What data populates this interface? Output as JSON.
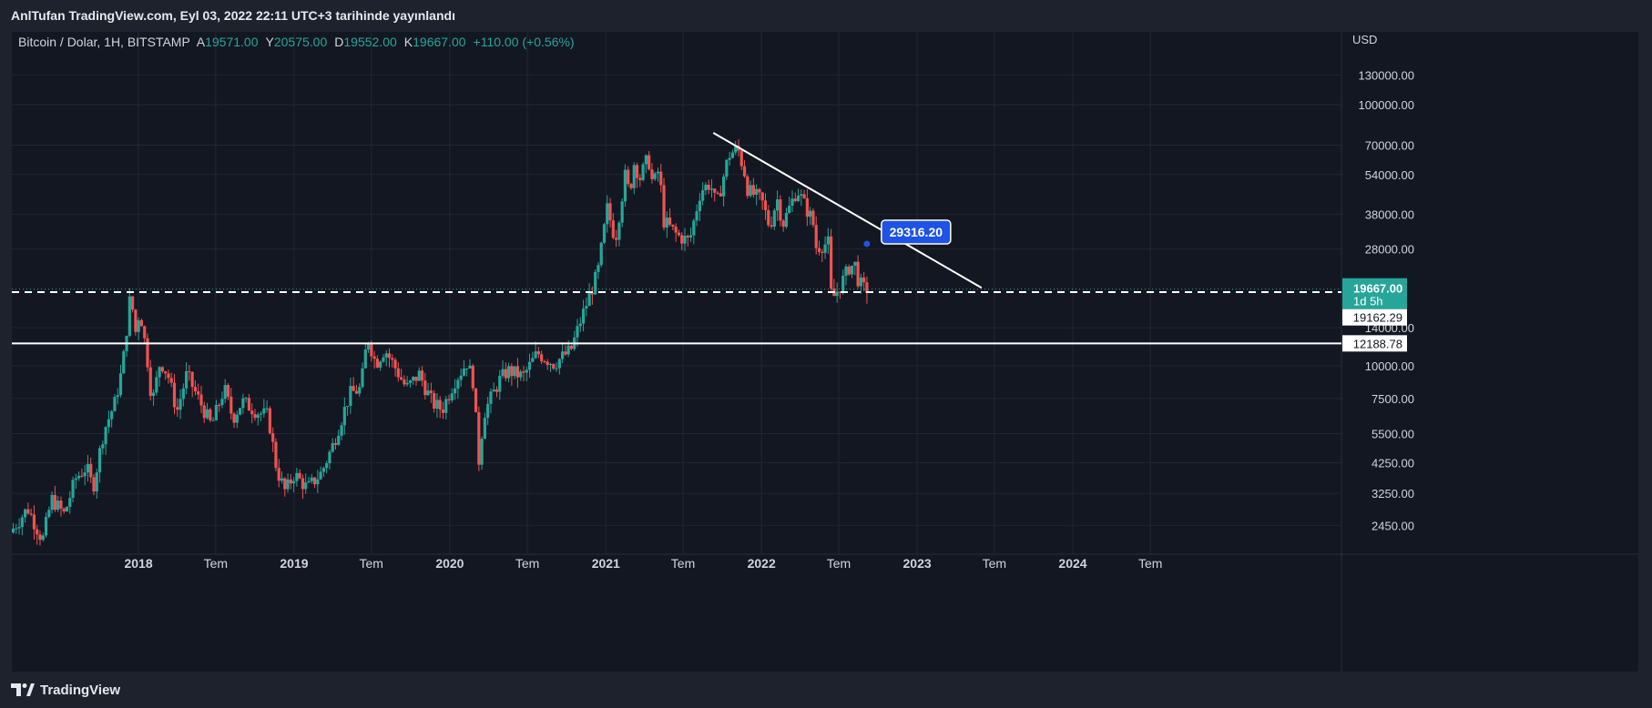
{
  "header": {
    "published_by": "AnlTufan TradingView.com, Eyl 03, 2022 22:11 UTC+3 tarihinde yayınlandı"
  },
  "footer": {
    "brand": "TradingView",
    "logo_icon": "tradingview-logo-icon"
  },
  "legend": {
    "symbol": "Bitcoin / Dolar, 1H, BITSTAMP",
    "open_label": "A",
    "open_value": "19571.00",
    "high_label": "Y",
    "high_value": "20575.00",
    "low_label": "D",
    "low_value": "19552.00",
    "close_label": "K",
    "close_value": "19667.00",
    "change": "+110.00 (+0.56%)"
  },
  "colors": {
    "background": "#131722",
    "outer": "#1e222d",
    "grid": "#232733",
    "up": "#26a69a",
    "down": "#ef5350",
    "text": "#d1d4dc",
    "trendline": "#ffffff",
    "price_tag": "#26a69a",
    "callout": "#1e53e5"
  },
  "chart_data": {
    "type": "candlestick",
    "symbol": "BTC/USD",
    "yscale": "log",
    "ylabel": "USD",
    "ylim": [
      1900,
      190000
    ],
    "xlim": [
      "2017-03-10",
      "2025-09-22"
    ],
    "y_ticks": [
      "130000.00",
      "100000.00",
      "70000.00",
      "54000.00",
      "38000.00",
      "28000.00",
      "14000.00",
      "10000.00",
      "7500.00",
      "5500.00",
      "4250.00",
      "3250.00",
      "2450.00"
    ],
    "x_ticks": [
      {
        "date": "2018-01-01",
        "label": "2018",
        "bold": true
      },
      {
        "date": "2018-07-01",
        "label": "Tem",
        "bold": false
      },
      {
        "date": "2019-01-01",
        "label": "2019",
        "bold": true
      },
      {
        "date": "2019-07-01",
        "label": "Tem",
        "bold": false
      },
      {
        "date": "2020-01-01",
        "label": "2020",
        "bold": true
      },
      {
        "date": "2020-07-01",
        "label": "Tem",
        "bold": false
      },
      {
        "date": "2021-01-01",
        "label": "2021",
        "bold": true
      },
      {
        "date": "2021-07-01",
        "label": "Tem",
        "bold": false
      },
      {
        "date": "2022-01-01",
        "label": "2022",
        "bold": true
      },
      {
        "date": "2022-07-01",
        "label": "Tem",
        "bold": false
      },
      {
        "date": "2023-01-01",
        "label": "2023",
        "bold": true
      },
      {
        "date": "2023-07-01",
        "label": "Tem",
        "bold": false
      },
      {
        "date": "2024-01-01",
        "label": "2024",
        "bold": true
      },
      {
        "date": "2024-07-01",
        "label": "Tem",
        "bold": false
      }
    ],
    "path": [
      [
        "2017-03-10",
        2300
      ],
      [
        "2017-04-20",
        2850
      ],
      [
        "2017-05-25",
        2150
      ],
      [
        "2017-06-15",
        3100
      ],
      [
        "2017-07-15",
        2700
      ],
      [
        "2017-08-10",
        3700
      ],
      [
        "2017-09-05",
        4100
      ],
      [
        "2017-09-20",
        3400
      ],
      [
        "2017-10-15",
        5600
      ],
      [
        "2017-11-10",
        7200
      ],
      [
        "2017-11-28",
        9800
      ],
      [
        "2017-12-17",
        18900
      ],
      [
        "2017-12-29",
        13500
      ],
      [
        "2018-01-08",
        16500
      ],
      [
        "2018-01-25",
        10800
      ],
      [
        "2018-02-06",
        7200
      ],
      [
        "2018-02-25",
        10500
      ],
      [
        "2018-03-15",
        9200
      ],
      [
        "2018-04-05",
        6700
      ],
      [
        "2018-04-28",
        9300
      ],
      [
        "2018-05-20",
        7800
      ],
      [
        "2018-06-25",
        5900
      ],
      [
        "2018-07-25",
        8200
      ],
      [
        "2018-08-14",
        6300
      ],
      [
        "2018-09-05",
        7300
      ],
      [
        "2018-10-15",
        6600
      ],
      [
        "2018-11-05",
        6450
      ],
      [
        "2018-11-25",
        4000
      ],
      [
        "2018-12-15",
        3300
      ],
      [
        "2019-01-05",
        3850
      ],
      [
        "2019-02-05",
        3400
      ],
      [
        "2019-03-10",
        3900
      ],
      [
        "2019-04-05",
        4950
      ],
      [
        "2019-05-15",
        7800
      ],
      [
        "2019-06-10",
        8200
      ],
      [
        "2019-06-26",
        13000
      ],
      [
        "2019-07-15",
        10200
      ],
      [
        "2019-08-05",
        11600
      ],
      [
        "2019-09-01",
        9700
      ],
      [
        "2019-09-25",
        8200
      ],
      [
        "2019-10-25",
        9300
      ],
      [
        "2019-11-25",
        7200
      ],
      [
        "2019-12-18",
        6800
      ],
      [
        "2020-01-15",
        8700
      ],
      [
        "2020-02-14",
        10300
      ],
      [
        "2020-03-01",
        8600
      ],
      [
        "2020-03-12",
        4200
      ],
      [
        "2020-03-25",
        6600
      ],
      [
        "2020-04-30",
        8800
      ],
      [
        "2020-05-20",
        9600
      ],
      [
        "2020-06-25",
        9100
      ],
      [
        "2020-07-28",
        11200
      ],
      [
        "2020-09-05",
        10200
      ],
      [
        "2020-10-15",
        11500
      ],
      [
        "2020-11-10",
        15500
      ],
      [
        "2020-12-17",
        22800
      ],
      [
        "2021-01-08",
        40000
      ],
      [
        "2021-01-27",
        30500
      ],
      [
        "2021-02-21",
        56000
      ],
      [
        "2021-02-28",
        45000
      ],
      [
        "2021-03-13",
        61000
      ],
      [
        "2021-03-25",
        52000
      ],
      [
        "2021-04-14",
        63000
      ],
      [
        "2021-04-25",
        49000
      ],
      [
        "2021-05-10",
        57000
      ],
      [
        "2021-05-20",
        36000
      ],
      [
        "2021-06-22",
        31500
      ],
      [
        "2021-07-20",
        30000
      ],
      [
        "2021-08-15",
        47000
      ],
      [
        "2021-09-07",
        50000
      ],
      [
        "2021-09-21",
        41000
      ],
      [
        "2021-10-20",
        64000
      ],
      [
        "2021-11-10",
        68000
      ],
      [
        "2021-11-26",
        55000
      ],
      [
        "2021-12-04",
        47000
      ],
      [
        "2022-01-05",
        43000
      ],
      [
        "2022-01-24",
        34000
      ],
      [
        "2022-02-10",
        44000
      ],
      [
        "2022-02-24",
        35000
      ],
      [
        "2022-03-29",
        47500
      ],
      [
        "2022-04-20",
        40000
      ],
      [
        "2022-05-05",
        36000
      ],
      [
        "2022-05-12",
        28500
      ],
      [
        "2022-06-10",
        29500
      ],
      [
        "2022-06-18",
        17800
      ],
      [
        "2022-07-10",
        20500
      ],
      [
        "2022-07-30",
        24000
      ],
      [
        "2022-08-14",
        24400
      ],
      [
        "2022-08-20",
        21000
      ],
      [
        "2022-09-03",
        19667
      ]
    ],
    "last_price": "19667.00",
    "countdown": "1d 5h",
    "trendline": {
      "from": [
        "2021-09-10",
        78000
      ],
      "to": [
        "2023-06-01",
        19900
      ]
    },
    "trend_callout": {
      "date": "2022-09-05",
      "value": 29316.2,
      "label": "29316.20"
    },
    "horizontal_levels": [
      {
        "value": 19162.29,
        "label": "19162.29",
        "style": "dashed"
      },
      {
        "value": 12188.78,
        "label": "12188.78",
        "style": "solid"
      }
    ]
  }
}
